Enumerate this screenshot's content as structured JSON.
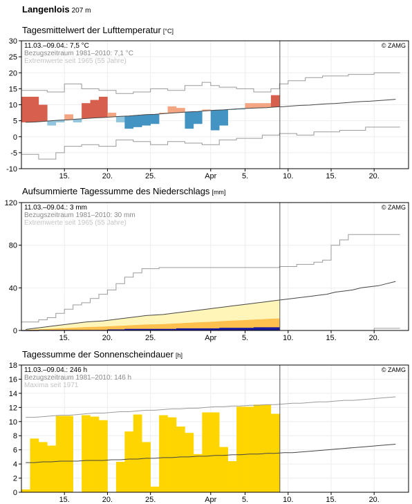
{
  "station": {
    "name": "Langenlois",
    "altitude": "207 m"
  },
  "x_axis": {
    "ticks": [
      {
        "day": 5,
        "label": "15."
      },
      {
        "day": 10,
        "label": "20."
      },
      {
        "day": 15,
        "label": "25."
      },
      {
        "day": 22,
        "label": "Apr"
      },
      {
        "day": 26,
        "label": "5."
      },
      {
        "day": 31,
        "label": "10."
      },
      {
        "day": 36,
        "label": "15."
      },
      {
        "day": 41,
        "label": "20."
      }
    ]
  },
  "copyright": "© ZAMG",
  "chart_data": [
    {
      "type": "bar",
      "title": "Tagesmittelwert der Lufttemperatur",
      "unit": "[°C]",
      "legend": [
        "11.03.–09.04.: 7,5 °C",
        "Bezugszeitraum 1981–2010: 7,1 °C",
        "Extremwerte seit 1965 (55 Jahre)"
      ],
      "ylim": [
        -10,
        30
      ],
      "yticks": [
        -10,
        -5,
        0,
        5,
        10,
        15,
        20,
        25,
        30
      ],
      "x": [
        0,
        1,
        2,
        3,
        4,
        5,
        6,
        7,
        8,
        9,
        10,
        11,
        12,
        13,
        14,
        15,
        16,
        17,
        18,
        19,
        20,
        21,
        22,
        23,
        24,
        25,
        26,
        27,
        28,
        29
      ],
      "values": [
        12.5,
        12.5,
        10.0,
        3.5,
        4.5,
        7.0,
        4.5,
        10.5,
        11.5,
        12.5,
        7.5,
        4.5,
        2.5,
        3.0,
        3.5,
        4.0,
        7.5,
        9.5,
        9.0,
        2.5,
        4.0,
        8.5,
        2.0,
        3.5,
        8.5,
        8.5,
        10.5,
        10.5,
        10.5,
        13.0
      ],
      "normal": [
        4.5,
        4.6,
        4.8,
        5.0,
        5.2,
        5.3,
        5.5,
        5.7,
        5.9,
        6.0,
        6.2,
        6.4,
        6.5,
        6.7,
        6.9,
        7.0,
        7.2,
        7.4,
        7.6,
        7.8,
        7.9,
        8.1,
        8.3,
        8.4,
        8.6,
        8.8,
        8.9,
        9.0,
        9.1,
        9.3,
        9.4,
        9.6,
        9.8,
        9.9,
        10.1,
        10.3,
        10.4,
        10.6,
        10.8,
        11.0,
        11.1,
        11.3,
        11.5,
        11.7
      ],
      "max_extreme": [
        14.5,
        14.5,
        14.5,
        14.0,
        14.0,
        16.5,
        16.5,
        15.0,
        15.0,
        14.5,
        14.5,
        13.5,
        13.5,
        14.0,
        14.0,
        15.0,
        15.0,
        14.5,
        14.5,
        16.0,
        16.0,
        17.0,
        16.0,
        15.5,
        15.5,
        15.0,
        15.0,
        14.0,
        14.0,
        15.0,
        16.5,
        17.5,
        17.5,
        18.5,
        18.5,
        19.0,
        19.0,
        19.0,
        19.5,
        19.5,
        19.5,
        20.0,
        20.0,
        20.0
      ],
      "min_extreme": [
        -5.5,
        -5.5,
        -7.0,
        -7.0,
        -5.0,
        -3.0,
        -3.0,
        -2.5,
        -2.5,
        -3.0,
        -3.0,
        -1.0,
        -1.0,
        -1.5,
        -1.5,
        -2.5,
        -2.5,
        -1.5,
        -1.5,
        -2.0,
        -2.0,
        -2.5,
        -2.5,
        -1.0,
        -1.0,
        -0.5,
        -0.5,
        -0.5,
        0.5,
        0.5,
        1.0,
        1.0,
        0.5,
        0.5,
        1.5,
        1.5,
        1.5,
        2.0,
        2.0,
        2.0,
        3.0,
        3.0,
        3.0,
        3.0
      ]
    },
    {
      "type": "area",
      "title": "Aufsummierte Tagessumme des Niederschlags",
      "unit": "[mm]",
      "legend": [
        "11.03.–09.04.: 3 mm",
        "Bezugszeitraum 1981–2010: 30 mm",
        "Extremwerte seit 1965 (55 Jahre)"
      ],
      "ylim": [
        0,
        120
      ],
      "yticks": [
        0,
        40,
        80,
        120
      ],
      "x": [
        0,
        1,
        2,
        3,
        4,
        5,
        6,
        7,
        8,
        9,
        10,
        11,
        12,
        13,
        14,
        15,
        16,
        17,
        18,
        19,
        20,
        21,
        22,
        23,
        24,
        25,
        26,
        27,
        28,
        29
      ],
      "values": [
        0,
        0,
        0.5,
        0.5,
        0.5,
        0.5,
        0.5,
        0.5,
        0.5,
        0.5,
        1,
        1,
        1.5,
        1.5,
        1.5,
        1.5,
        1.5,
        1.5,
        2,
        2,
        2,
        2,
        2,
        2.5,
        2.5,
        2.5,
        2.5,
        3,
        3,
        3
      ],
      "normal": [
        1,
        2,
        3,
        4,
        5,
        6,
        7,
        8,
        8.5,
        9,
        10,
        11,
        12,
        13,
        14,
        14.5,
        15,
        16,
        17,
        18,
        19,
        20,
        21,
        22,
        23,
        24,
        25,
        26,
        27,
        28,
        29,
        30,
        31,
        32,
        33,
        34,
        36,
        37,
        38,
        40,
        41,
        42,
        44,
        46
      ],
      "max_extreme": [
        8,
        8,
        10,
        12,
        16,
        20,
        24,
        26,
        30,
        34,
        38,
        44,
        50,
        54,
        58,
        58,
        59,
        59,
        59,
        59,
        59,
        59,
        59,
        59,
        59,
        59,
        59,
        59,
        59,
        59,
        60,
        60,
        62,
        62,
        64,
        66,
        80,
        85,
        90,
        90,
        90,
        90,
        90,
        90
      ],
      "min_extreme": [
        0,
        0,
        0,
        0,
        0,
        0,
        0,
        0,
        0,
        0,
        0,
        0,
        0,
        0,
        0,
        0,
        0,
        0,
        0,
        0,
        0,
        0,
        0,
        0,
        0,
        0,
        0,
        0,
        0,
        0,
        0,
        0,
        0,
        0,
        0,
        0,
        0,
        0,
        0,
        0,
        0,
        2,
        2,
        2
      ]
    },
    {
      "type": "bar",
      "title": "Tagessumme der Sonnenscheindauer",
      "unit": "[h]",
      "legend": [
        "11.03.–09.04.: 246 h",
        "Bezugszeitraum 1981–2010: 146 h",
        "Maxima seit 1971"
      ],
      "ylim": [
        0,
        18
      ],
      "yticks": [
        0,
        2,
        4,
        6,
        8,
        10,
        12,
        14,
        16,
        18
      ],
      "x": [
        0,
        1,
        2,
        3,
        4,
        5,
        6,
        7,
        8,
        9,
        10,
        11,
        12,
        13,
        14,
        15,
        16,
        17,
        18,
        19,
        20,
        21,
        22,
        23,
        24,
        25,
        26,
        27,
        28,
        29
      ],
      "values": [
        0.4,
        7.6,
        7.1,
        6.6,
        10.8,
        10.8,
        0,
        10.9,
        10.7,
        10.2,
        0,
        4.3,
        8.6,
        11.0,
        7.1,
        0.8,
        10.9,
        10.6,
        9.3,
        8.4,
        5.4,
        11.3,
        11.3,
        6.4,
        4.4,
        12.1,
        12.1,
        12.4,
        12.4,
        11.1
      ],
      "normal": [
        4.2,
        4.2,
        4.3,
        4.3,
        4.4,
        4.4,
        4.4,
        4.5,
        4.5,
        4.5,
        4.6,
        4.6,
        4.7,
        4.7,
        4.8,
        4.8,
        4.9,
        4.9,
        5.0,
        5.0,
        5.1,
        5.1,
        5.2,
        5.2,
        5.3,
        5.3,
        5.4,
        5.4,
        5.5,
        5.5,
        5.6,
        5.6,
        5.7,
        5.8,
        5.9,
        6.0,
        6.1,
        6.2,
        6.3,
        6.4,
        6.5,
        6.6,
        6.7,
        6.8
      ],
      "max_extreme": [
        10.6,
        10.6,
        10.7,
        10.8,
        10.9,
        10.9,
        11.0,
        11.1,
        11.2,
        11.2,
        11.3,
        11.4,
        11.4,
        11.5,
        11.6,
        11.6,
        11.7,
        11.8,
        11.8,
        11.9,
        11.9,
        12.0,
        12.1,
        12.1,
        12.2,
        12.2,
        12.3,
        12.3,
        12.4,
        12.4,
        12.5,
        12.6,
        12.6,
        12.7,
        12.8,
        12.8,
        12.9,
        13.0,
        13.0,
        13.1,
        13.2,
        13.3,
        13.4,
        13.5
      ]
    }
  ]
}
